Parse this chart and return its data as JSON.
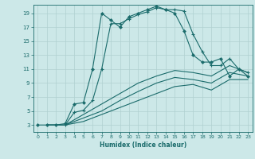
{
  "title": "",
  "xlabel": "Humidex (Indice chaleur)",
  "bg_color": "#cce8e8",
  "grid_color": "#b0d0d0",
  "line_color": "#1a6b6b",
  "xlim": [
    -0.5,
    23.5
  ],
  "ylim": [
    2.0,
    20.2
  ],
  "xticks": [
    0,
    1,
    2,
    3,
    4,
    5,
    6,
    7,
    8,
    9,
    10,
    11,
    12,
    13,
    14,
    15,
    16,
    17,
    18,
    19,
    20,
    21,
    22,
    23
  ],
  "yticks": [
    3,
    5,
    7,
    9,
    11,
    13,
    15,
    17,
    19
  ],
  "line1_x": [
    0,
    1,
    2,
    3,
    4,
    5,
    6,
    7,
    8,
    9,
    10,
    11,
    12,
    13,
    14,
    15,
    16,
    17,
    18,
    19,
    20,
    21,
    22,
    23
  ],
  "line1_y": [
    3,
    3,
    3,
    3.2,
    6,
    6.2,
    11,
    19,
    18,
    17,
    18.5,
    19,
    19.5,
    20,
    19.5,
    19,
    16.5,
    13,
    12,
    12,
    12.5,
    10,
    11,
    10
  ],
  "line2_x": [
    3,
    4,
    5,
    6,
    7,
    8,
    9,
    10,
    11,
    12,
    13,
    14,
    15,
    16,
    17,
    18,
    19,
    20,
    21,
    22,
    23
  ],
  "line2_y": [
    3,
    4.8,
    5.1,
    6.5,
    11,
    17.5,
    17.5,
    18.2,
    18.8,
    19.2,
    19.8,
    19.5,
    19.5,
    19.3,
    16,
    13.5,
    11.5,
    11.5,
    12.5,
    11,
    10.5
  ],
  "line3_x": [
    1,
    3,
    5,
    7,
    9,
    11,
    13,
    15,
    17,
    19,
    21,
    23
  ],
  "line3_y": [
    3,
    3,
    4.5,
    6,
    7.5,
    9,
    10,
    10.8,
    10.5,
    10,
    11.5,
    10.5
  ],
  "line4_x": [
    1,
    3,
    5,
    7,
    9,
    11,
    13,
    15,
    17,
    19,
    21,
    23
  ],
  "line4_y": [
    3,
    3,
    4.0,
    5,
    6.5,
    7.8,
    9,
    9.8,
    9.5,
    9,
    10.5,
    10
  ],
  "line5_x": [
    1,
    3,
    5,
    7,
    9,
    11,
    13,
    15,
    17,
    19,
    21,
    23
  ],
  "line5_y": [
    3,
    3,
    3.5,
    4.5,
    5.5,
    6.5,
    7.5,
    8.5,
    8.8,
    8,
    9.5,
    9.5
  ]
}
